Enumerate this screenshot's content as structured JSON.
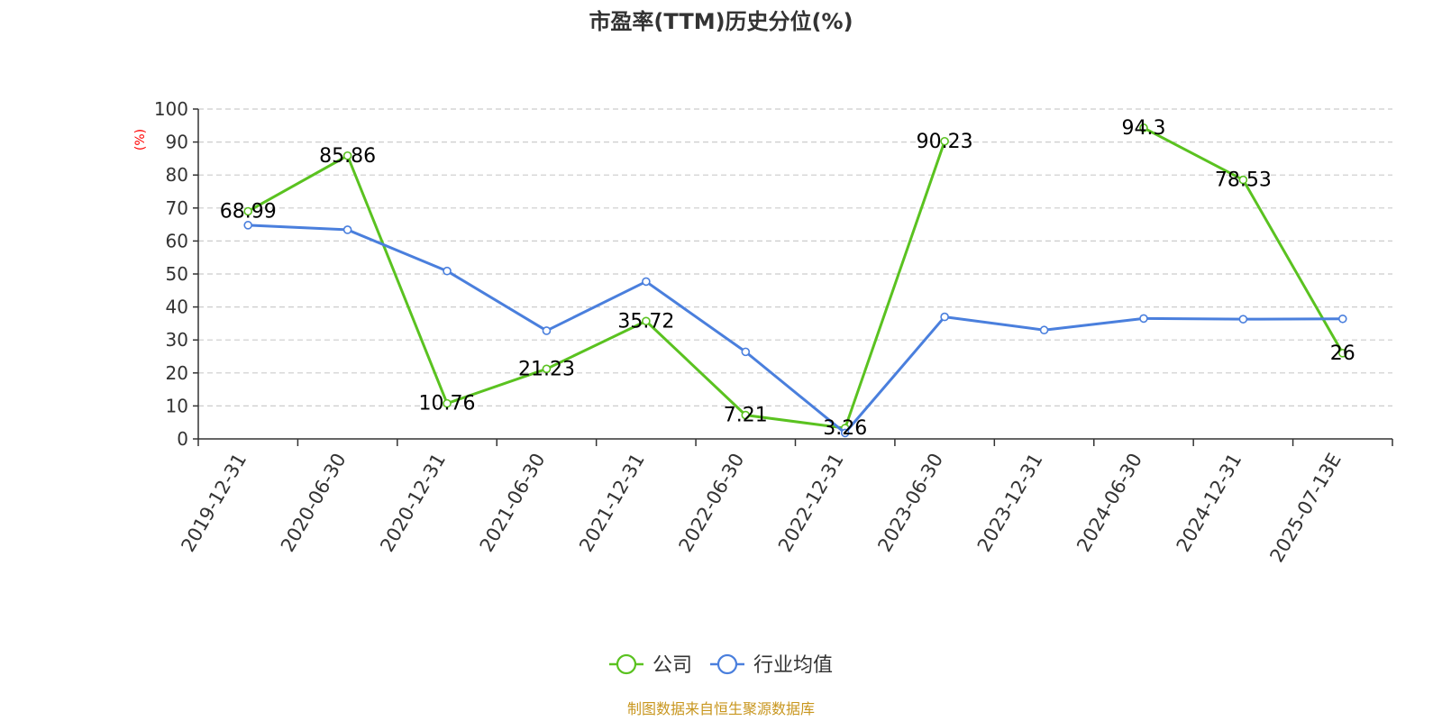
{
  "chart_data": {
    "type": "line",
    "title": "市盈率(TTM)历史分位(%)",
    "ylabel": "(%)",
    "ylim": [
      0,
      100
    ],
    "yticks": [
      0,
      10,
      20,
      30,
      40,
      50,
      60,
      70,
      80,
      90,
      100
    ],
    "categories": [
      "2019-12-31",
      "2020-06-30",
      "2020-12-31",
      "2021-06-30",
      "2021-12-31",
      "2022-06-30",
      "2022-12-31",
      "2023-06-30",
      "2023-12-31",
      "2024-06-30",
      "2024-12-31",
      "2025-07-13E"
    ],
    "grid": true,
    "legend_position": "bottom",
    "series": [
      {
        "name": "公司",
        "color": "#5ac220",
        "values": [
          68.99,
          85.86,
          10.76,
          21.23,
          35.72,
          7.21,
          3.26,
          90.23,
          null,
          94.3,
          78.53,
          26
        ],
        "labels": [
          "68.99",
          "85.86",
          "10.76",
          "21.23",
          "35.72",
          "7.21",
          "3.26",
          "90.23",
          null,
          "94.3",
          "78.53",
          "26"
        ]
      },
      {
        "name": "行业均值",
        "color": "#4a7fdd",
        "values": [
          64.8,
          63.4,
          50.9,
          32.8,
          47.7,
          26.4,
          1.8,
          37.0,
          33.0,
          36.5,
          36.3,
          36.4
        ],
        "labels": null
      }
    ]
  },
  "footer": {
    "source": "制图数据来自恒生聚源数据库"
  }
}
